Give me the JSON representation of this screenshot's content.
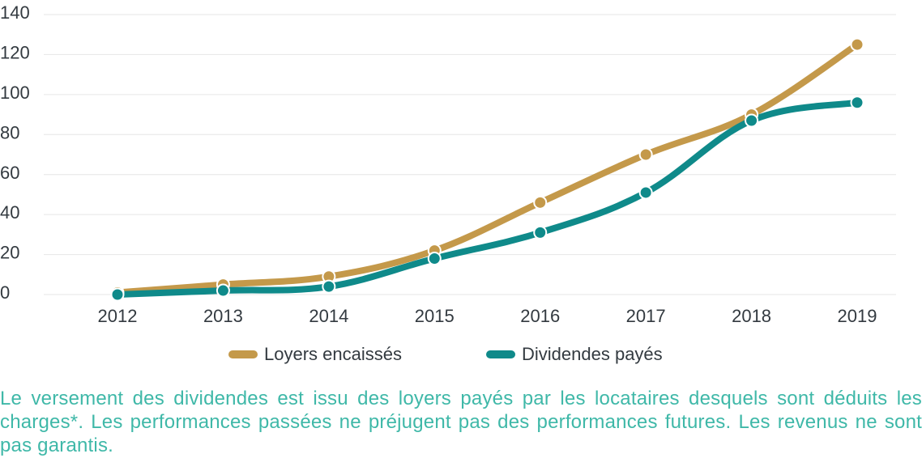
{
  "chart_data": {
    "type": "line",
    "categories": [
      "2012",
      "2013",
      "2014",
      "2015",
      "2016",
      "2017",
      "2018",
      "2019"
    ],
    "series": [
      {
        "name": "Loyers encaissés",
        "color": "#c4994a",
        "values": [
          1,
          5,
          9,
          22,
          46,
          70,
          90,
          125
        ]
      },
      {
        "name": "Dividendes payés",
        "color": "#0f8a8a",
        "values": [
          0,
          2,
          4,
          18,
          31,
          51,
          87,
          96
        ]
      }
    ],
    "yticks": [
      0,
      20,
      40,
      60,
      80,
      100,
      120,
      140
    ],
    "ylim": [
      0,
      140
    ],
    "grid": true,
    "legend_position": "bottom"
  },
  "note": "Le versement des dividendes est issu des loyers payés par les locataires desquels sont déduits les charges*. Les performances passées ne préjugent pas des performances futures. Les revenus ne sont pas garantis."
}
